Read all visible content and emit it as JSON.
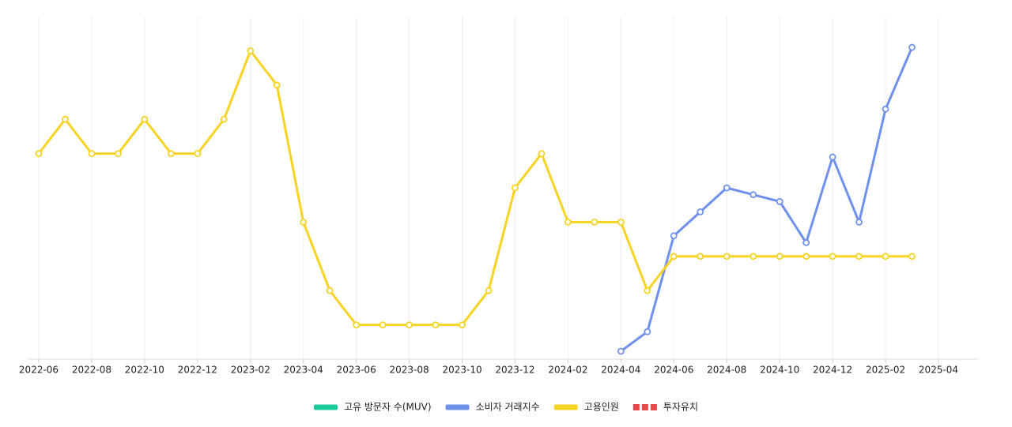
{
  "chart_data": {
    "type": "line",
    "x": [
      "2022-06",
      "2022-07",
      "2022-08",
      "2022-09",
      "2022-10",
      "2022-11",
      "2022-12",
      "2023-01",
      "2023-02",
      "2023-03",
      "2023-04",
      "2023-05",
      "2023-06",
      "2023-07",
      "2023-08",
      "2023-09",
      "2023-10",
      "2023-11",
      "2023-12",
      "2024-01",
      "2024-02",
      "2024-03",
      "2024-04",
      "2024-05",
      "2024-06",
      "2024-07",
      "2024-08",
      "2024-09",
      "2024-10",
      "2024-11",
      "2024-12",
      "2025-01",
      "2025-02",
      "2025-03"
    ],
    "series": [
      {
        "name": "고유 방문자 수(MUV)",
        "color": "#1ec99b",
        "values": [
          null,
          null,
          null,
          null,
          null,
          null,
          null,
          null,
          null,
          null,
          null,
          null,
          null,
          null,
          null,
          null,
          null,
          null,
          null,
          null,
          null,
          null,
          null,
          null,
          null,
          null,
          null,
          null,
          null,
          null,
          null,
          null,
          null,
          null
        ]
      },
      {
        "name": "소비자 거래지수",
        "color": "#7090ee",
        "values": [
          null,
          null,
          null,
          null,
          null,
          null,
          null,
          null,
          null,
          null,
          null,
          null,
          null,
          null,
          null,
          null,
          null,
          null,
          null,
          null,
          null,
          null,
          0.23,
          0.8,
          3.6,
          4.3,
          5.0,
          4.8,
          4.6,
          3.4,
          5.9,
          4.0,
          7.3,
          9.1
        ]
      },
      {
        "name": "고용인원",
        "color": "#f7d324",
        "values": [
          6,
          7,
          6,
          6,
          7,
          6,
          6,
          7,
          9,
          8,
          4,
          2,
          1,
          1,
          1,
          1,
          1,
          2,
          5,
          6,
          4,
          4,
          4,
          2,
          3,
          3,
          3,
          3,
          3,
          3,
          3,
          3,
          3,
          3
        ]
      },
      {
        "name": "투자유치",
        "color": "#e84848",
        "dashed": true,
        "values": [
          null,
          null,
          null,
          null,
          null,
          null,
          null,
          null,
          null,
          null,
          null,
          null,
          null,
          null,
          null,
          null,
          null,
          null,
          null,
          null,
          null,
          null,
          null,
          null,
          null,
          null,
          null,
          null,
          null,
          null,
          null,
          null,
          null,
          null
        ]
      }
    ],
    "xlim": [
      "2022-06",
      "2025-04"
    ],
    "xticks": [
      "2022-06",
      "2022-08",
      "2022-10",
      "2022-12",
      "2023-02",
      "2023-04",
      "2023-06",
      "2023-08",
      "2023-10",
      "2023-12",
      "2024-02",
      "2024-04",
      "2024-06",
      "2024-08",
      "2024-10",
      "2024-12",
      "2025-02",
      "2025-04"
    ],
    "ylim": [
      0,
      10
    ],
    "grid": true
  }
}
